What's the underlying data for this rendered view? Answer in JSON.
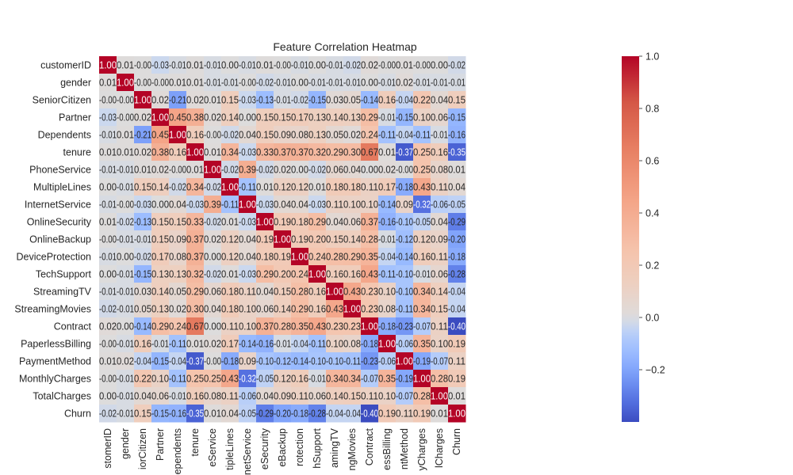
{
  "chart_data": {
    "type": "heatmap",
    "title": "Feature Correlation Heatmap",
    "xlabel": "",
    "ylabel": "",
    "row_labels": [
      "customerID",
      "gender",
      "SeniorCitizen",
      "Partner",
      "Dependents",
      "tenure",
      "PhoneService",
      "MultipleLines",
      "InternetService",
      "OnlineSecurity",
      "OnlineBackup",
      "DeviceProtection",
      "TechSupport",
      "StreamingTV",
      "StreamingMovies",
      "Contract",
      "PaperlessBilling",
      "PaymentMethod",
      "MonthlyCharges",
      "TotalCharges",
      "Churn"
    ],
    "col_labels": [
      "customerID",
      "gender",
      "SeniorCitizen",
      "Partner",
      "Dependents",
      "tenure",
      "PhoneService",
      "MultipleLines",
      "InternetService",
      "OnlineSecurity",
      "OnlineBackup",
      "DeviceProtection",
      "TechSupport",
      "StreamingTV",
      "StreamingMovies",
      "Contract",
      "PaperlessBilling",
      "PaymentMethod",
      "MonthlyCharges",
      "TotalCharges",
      "Churn"
    ],
    "col_labels_visible": [
      "stomerID",
      "gender",
      "iorCitizen",
      "Partner",
      "ependents",
      "tenure",
      "eService",
      "tipleLines",
      "netService",
      "eSecurity",
      "eBackup",
      "rotection",
      "hSupport",
      "amingTV",
      "ngMovies",
      "Contract",
      "essBilling",
      "ntMethod",
      "yCharges",
      "lCharges",
      "Churn"
    ],
    "values": [
      [
        "1.00",
        "0.01",
        "-0.00",
        "-0.03",
        "-0.01",
        "0.01",
        "-0.01",
        "0.00",
        "-0.01",
        "0.01",
        "-0.00",
        "-0.01",
        "0.00",
        "-0.01",
        "-0.02",
        "0.02",
        "-0.00",
        "0.01",
        "-0.00",
        "0.00",
        "-0.02"
      ],
      [
        "0.01",
        "1.00",
        "-0.00",
        "-0.00",
        "0.01",
        "0.01",
        "-0.01",
        "-0.01",
        "-0.00",
        "-0.02",
        "-0.01",
        "0.00",
        "-0.01",
        "-0.01",
        "-0.01",
        "0.00",
        "-0.01",
        "0.02",
        "-0.01",
        "-0.01",
        "-0.01"
      ],
      [
        "-0.00",
        "-0.00",
        "1.00",
        "0.02",
        "-0.21",
        "0.02",
        "0.01",
        "0.15",
        "-0.03",
        "-0.13",
        "-0.01",
        "-0.02",
        "-0.15",
        "0.03",
        "0.05",
        "-0.14",
        "0.16",
        "-0.04",
        "0.22",
        "0.04",
        "0.15"
      ],
      [
        "-0.03",
        "-0.00",
        "0.02",
        "1.00",
        "0.45",
        "0.38",
        "0.02",
        "0.14",
        "0.00",
        "0.15",
        "0.15",
        "0.17",
        "0.13",
        "0.14",
        "0.13",
        "0.29",
        "-0.01",
        "-0.15",
        "0.10",
        "0.06",
        "-0.15"
      ],
      [
        "-0.01",
        "0.01",
        "-0.21",
        "0.45",
        "1.00",
        "0.16",
        "-0.00",
        "-0.02",
        "0.04",
        "0.15",
        "0.09",
        "0.08",
        "0.13",
        "0.05",
        "0.02",
        "0.24",
        "-0.11",
        "-0.04",
        "-0.11",
        "-0.01",
        "-0.16"
      ],
      [
        "0.01",
        "0.01",
        "0.02",
        "0.38",
        "0.16",
        "1.00",
        "0.01",
        "0.34",
        "-0.03",
        "0.33",
        "0.37",
        "0.37",
        "0.32",
        "0.29",
        "0.30",
        "0.67",
        "0.01",
        "-0.37",
        "0.25",
        "0.16",
        "-0.35"
      ],
      [
        "-0.01",
        "-0.01",
        "0.01",
        "0.02",
        "-0.00",
        "0.01",
        "1.00",
        "-0.02",
        "0.39",
        "-0.02",
        "0.02",
        "0.00",
        "-0.02",
        "0.06",
        "0.04",
        "0.00",
        "0.02",
        "-0.00",
        "0.25",
        "0.08",
        "0.01"
      ],
      [
        "0.00",
        "-0.01",
        "0.15",
        "0.14",
        "-0.02",
        "0.34",
        "-0.02",
        "1.00",
        "-0.11",
        "0.01",
        "0.12",
        "0.12",
        "0.01",
        "0.18",
        "0.18",
        "0.11",
        "0.17",
        "-0.18",
        "0.43",
        "0.11",
        "0.04"
      ],
      [
        "-0.01",
        "-0.00",
        "-0.03",
        "0.00",
        "0.04",
        "-0.03",
        "0.39",
        "-0.11",
        "1.00",
        "-0.03",
        "0.04",
        "0.04",
        "-0.03",
        "0.11",
        "0.10",
        "0.10",
        "-0.14",
        "0.09",
        "-0.32",
        "-0.06",
        "-0.05"
      ],
      [
        "0.01",
        "-0.02",
        "-0.13",
        "0.15",
        "0.15",
        "0.33",
        "-0.02",
        "0.01",
        "-0.03",
        "1.00",
        "0.19",
        "0.18",
        "0.29",
        "0.04",
        "0.06",
        "0.37",
        "-0.16",
        "-0.10",
        "-0.05",
        "0.04",
        "-0.29"
      ],
      [
        "-0.00",
        "-0.01",
        "-0.01",
        "0.15",
        "0.09",
        "0.37",
        "0.02",
        "0.12",
        "0.04",
        "0.19",
        "1.00",
        "0.19",
        "0.20",
        "0.15",
        "0.14",
        "0.28",
        "-0.01",
        "-0.12",
        "0.12",
        "0.09",
        "-0.20"
      ],
      [
        "-0.01",
        "0.00",
        "-0.02",
        "0.17",
        "0.08",
        "0.37",
        "0.00",
        "0.12",
        "0.04",
        "0.18",
        "0.19",
        "1.00",
        "0.24",
        "0.28",
        "0.29",
        "0.35",
        "-0.04",
        "-0.14",
        "0.16",
        "0.11",
        "-0.18"
      ],
      [
        "0.00",
        "-0.01",
        "-0.15",
        "0.13",
        "0.13",
        "0.32",
        "-0.02",
        "0.01",
        "-0.03",
        "0.29",
        "0.20",
        "0.24",
        "1.00",
        "0.16",
        "0.16",
        "0.43",
        "-0.11",
        "-0.10",
        "-0.01",
        "0.06",
        "-0.28"
      ],
      [
        "-0.01",
        "-0.01",
        "0.03",
        "0.14",
        "0.05",
        "0.29",
        "0.06",
        "0.18",
        "0.11",
        "0.04",
        "0.15",
        "0.28",
        "0.16",
        "1.00",
        "0.43",
        "0.23",
        "0.10",
        "-0.10",
        "0.34",
        "0.14",
        "-0.04"
      ],
      [
        "-0.02",
        "-0.01",
        "0.05",
        "0.13",
        "0.02",
        "0.30",
        "0.04",
        "0.18",
        "0.10",
        "0.06",
        "0.14",
        "0.29",
        "0.16",
        "0.43",
        "1.00",
        "0.23",
        "0.08",
        "-0.11",
        "0.34",
        "0.15",
        "-0.04"
      ],
      [
        "0.02",
        "0.00",
        "-0.14",
        "0.29",
        "0.24",
        "0.67",
        "0.00",
        "0.11",
        "0.10",
        "0.37",
        "0.28",
        "0.35",
        "0.43",
        "0.23",
        "0.23",
        "1.00",
        "-0.18",
        "-0.23",
        "-0.07",
        "0.11",
        "-0.40"
      ],
      [
        "-0.00",
        "-0.01",
        "0.16",
        "-0.01",
        "-0.11",
        "0.01",
        "0.02",
        "0.17",
        "-0.14",
        "-0.16",
        "-0.01",
        "-0.04",
        "-0.11",
        "0.10",
        "0.08",
        "-0.18",
        "1.00",
        "-0.06",
        "0.35",
        "0.10",
        "0.19"
      ],
      [
        "0.01",
        "0.02",
        "-0.04",
        "-0.15",
        "-0.04",
        "-0.37",
        "-0.00",
        "-0.18",
        "0.09",
        "-0.10",
        "-0.12",
        "-0.14",
        "-0.10",
        "-0.10",
        "-0.11",
        "-0.23",
        "-0.06",
        "1.00",
        "-0.19",
        "-0.07",
        "0.11"
      ],
      [
        "-0.00",
        "-0.01",
        "0.22",
        "0.10",
        "-0.11",
        "0.25",
        "0.25",
        "0.43",
        "-0.32",
        "-0.05",
        "0.12",
        "0.16",
        "-0.01",
        "0.34",
        "0.34",
        "-0.07",
        "0.35",
        "-0.19",
        "1.00",
        "0.28",
        "0.19"
      ],
      [
        "0.00",
        "-0.01",
        "0.04",
        "0.06",
        "-0.01",
        "0.16",
        "0.08",
        "0.11",
        "-0.06",
        "0.04",
        "0.09",
        "0.11",
        "0.06",
        "0.14",
        "0.15",
        "0.11",
        "0.10",
        "-0.07",
        "0.28",
        "1.00",
        "0.01"
      ],
      [
        "-0.02",
        "-0.01",
        "0.15",
        "-0.15",
        "-0.16",
        "-0.35",
        "0.01",
        "0.04",
        "-0.05",
        "-0.29",
        "-0.20",
        "-0.18",
        "-0.28",
        "-0.04",
        "-0.04",
        "-0.40",
        "0.19",
        "0.11",
        "0.19",
        "0.01",
        "1.00"
      ]
    ],
    "colorscale": "coolwarm",
    "colorbar": {
      "range": [
        -0.4,
        1.0
      ],
      "ticks": [
        -0.2,
        0.0,
        0.2,
        0.4,
        0.6,
        0.8,
        1.0
      ],
      "tick_labels": [
        "−0.2",
        "0.0",
        "0.2",
        "0.4",
        "0.6",
        "0.8",
        "1.0"
      ]
    },
    "colors": {
      "low": "#3b4cc0",
      "mid": "#dddddd",
      "high": "#b40426"
    }
  }
}
